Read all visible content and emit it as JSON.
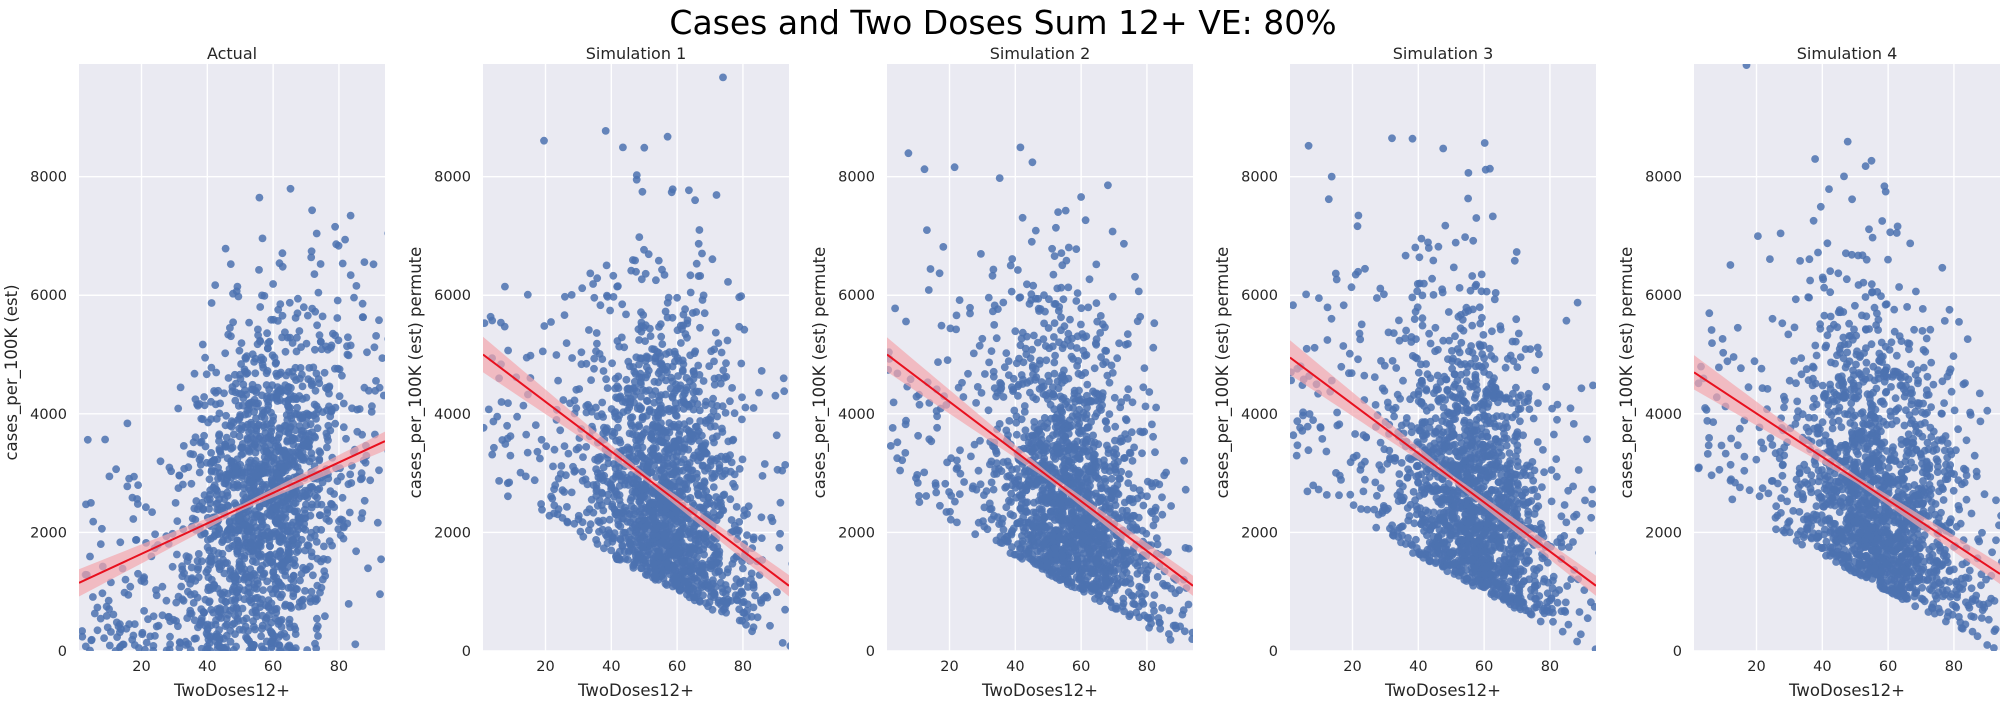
{
  "figure": {
    "title": "Cases and Two Doses Sum 12+ VE: 80%"
  },
  "style": {
    "plot_background": "#EAEAF2",
    "grid": "#FFFFFF",
    "point_color": "#4C72B0",
    "line_color": "#E8101E",
    "band_color": "#F4A6AE"
  },
  "chart_data": [
    {
      "type": "scatter",
      "title": "Actual",
      "xlabel": "TwoDoses12+",
      "ylabel": "cases_per_100K (est)",
      "xlim": [
        1,
        94
      ],
      "ylim": [
        0,
        9900
      ],
      "xticks": [
        20,
        40,
        60,
        80
      ],
      "yticks": [
        0,
        2000,
        4000,
        6000,
        8000
      ],
      "grid": true,
      "trend": "positive",
      "regression": {
        "x": [
          1,
          94
        ],
        "y": [
          1150,
          3540
        ]
      },
      "ci_halfwidth": {
        "x": [
          1,
          50,
          94
        ],
        "y": [
          230,
          50,
          160
        ]
      }
    },
    {
      "type": "scatter",
      "title": "Simulation 1",
      "xlabel": "TwoDoses12+",
      "ylabel": "cases_per_100K (est) permute",
      "xlim": [
        1,
        94
      ],
      "ylim": [
        0,
        9900
      ],
      "xticks": [
        20,
        40,
        60,
        80
      ],
      "yticks": [
        0,
        2000,
        4000,
        6000,
        8000
      ],
      "grid": true,
      "trend": "negative",
      "regression": {
        "x": [
          1,
          94
        ],
        "y": [
          5000,
          1100
        ]
      },
      "ci_halfwidth": {
        "x": [
          1,
          50,
          94
        ],
        "y": [
          300,
          60,
          180
        ]
      }
    },
    {
      "type": "scatter",
      "title": "Simulation 2",
      "xlabel": "TwoDoses12+",
      "ylabel": "cases_per_100K (est) permute",
      "xlim": [
        1,
        94
      ],
      "ylim": [
        0,
        9900
      ],
      "xticks": [
        20,
        40,
        60,
        80
      ],
      "yticks": [
        0,
        2000,
        4000,
        6000,
        8000
      ],
      "grid": true,
      "trend": "negative",
      "regression": {
        "x": [
          1,
          94
        ],
        "y": [
          5000,
          1100
        ]
      },
      "ci_halfwidth": {
        "x": [
          1,
          50,
          94
        ],
        "y": [
          290,
          60,
          170
        ]
      }
    },
    {
      "type": "scatter",
      "title": "Simulation 3",
      "xlabel": "TwoDoses12+",
      "ylabel": "cases_per_100K (est) permute",
      "xlim": [
        1,
        94
      ],
      "ylim": [
        0,
        9900
      ],
      "xticks": [
        20,
        40,
        60,
        80
      ],
      "yticks": [
        0,
        2000,
        4000,
        6000,
        8000
      ],
      "grid": true,
      "trend": "negative",
      "regression": {
        "x": [
          1,
          94
        ],
        "y": [
          4950,
          1100
        ]
      },
      "ci_halfwidth": {
        "x": [
          1,
          50,
          94
        ],
        "y": [
          290,
          60,
          170
        ]
      }
    },
    {
      "type": "scatter",
      "title": "Simulation 4",
      "xlabel": "TwoDoses12+",
      "ylabel": "cases_per_100K (est) permute",
      "xlim": [
        1,
        94
      ],
      "ylim": [
        0,
        9900
      ],
      "xticks": [
        20,
        40,
        60,
        80
      ],
      "yticks": [
        0,
        2000,
        4000,
        6000,
        8000
      ],
      "grid": true,
      "trend": "negative",
      "regression": {
        "x": [
          1,
          94
        ],
        "y": [
          4700,
          1300
        ]
      },
      "ci_halfwidth": {
        "x": [
          1,
          50,
          94
        ],
        "y": [
          290,
          60,
          170
        ]
      }
    }
  ]
}
